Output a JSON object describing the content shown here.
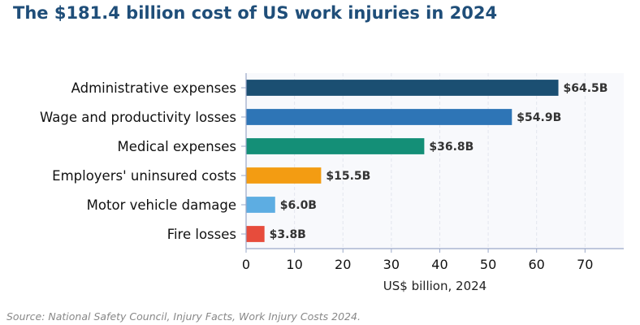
{
  "title": "The $181.4 billion cost of US work injuries in 2024",
  "source": "Source: National Safety Council, Injury Facts, Work Injury Costs 2024.",
  "chart_data": {
    "type": "bar",
    "orientation": "horizontal",
    "categories": [
      "Administrative expenses",
      "Wage and productivity losses",
      "Medical expenses",
      "Employers' uninsured costs",
      "Motor vehicle damage",
      "Fire losses"
    ],
    "values": [
      64.5,
      54.9,
      36.8,
      15.5,
      6.0,
      3.8
    ],
    "value_labels": [
      "$64.5B",
      "$54.9B",
      "$36.8B",
      "$15.5B",
      "$6.0B",
      "$3.8B"
    ],
    "colors": [
      "#1b4f72",
      "#2e75b6",
      "#148f77",
      "#f39c12",
      "#5dade2",
      "#e74c3c"
    ],
    "xlabel": "US$ billion, 2024",
    "ylabel": "",
    "xlim": [
      0,
      78
    ],
    "xticks": [
      0,
      10,
      20,
      30,
      40,
      50,
      60,
      70
    ],
    "grid": "vertical-dashed",
    "legend": "none"
  }
}
